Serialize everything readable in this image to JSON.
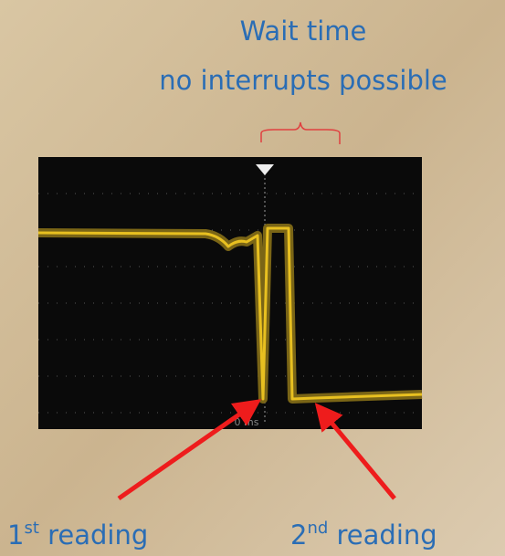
{
  "heading": {
    "line1": "Wait time",
    "line2": "no interrupts possible"
  },
  "scope": {
    "time_label": "0 ms"
  },
  "labels": [
    {
      "number": "1",
      "suffix": "st",
      "text": " reading"
    },
    {
      "number": "2",
      "suffix": "nd",
      "text": " reading"
    }
  ]
}
